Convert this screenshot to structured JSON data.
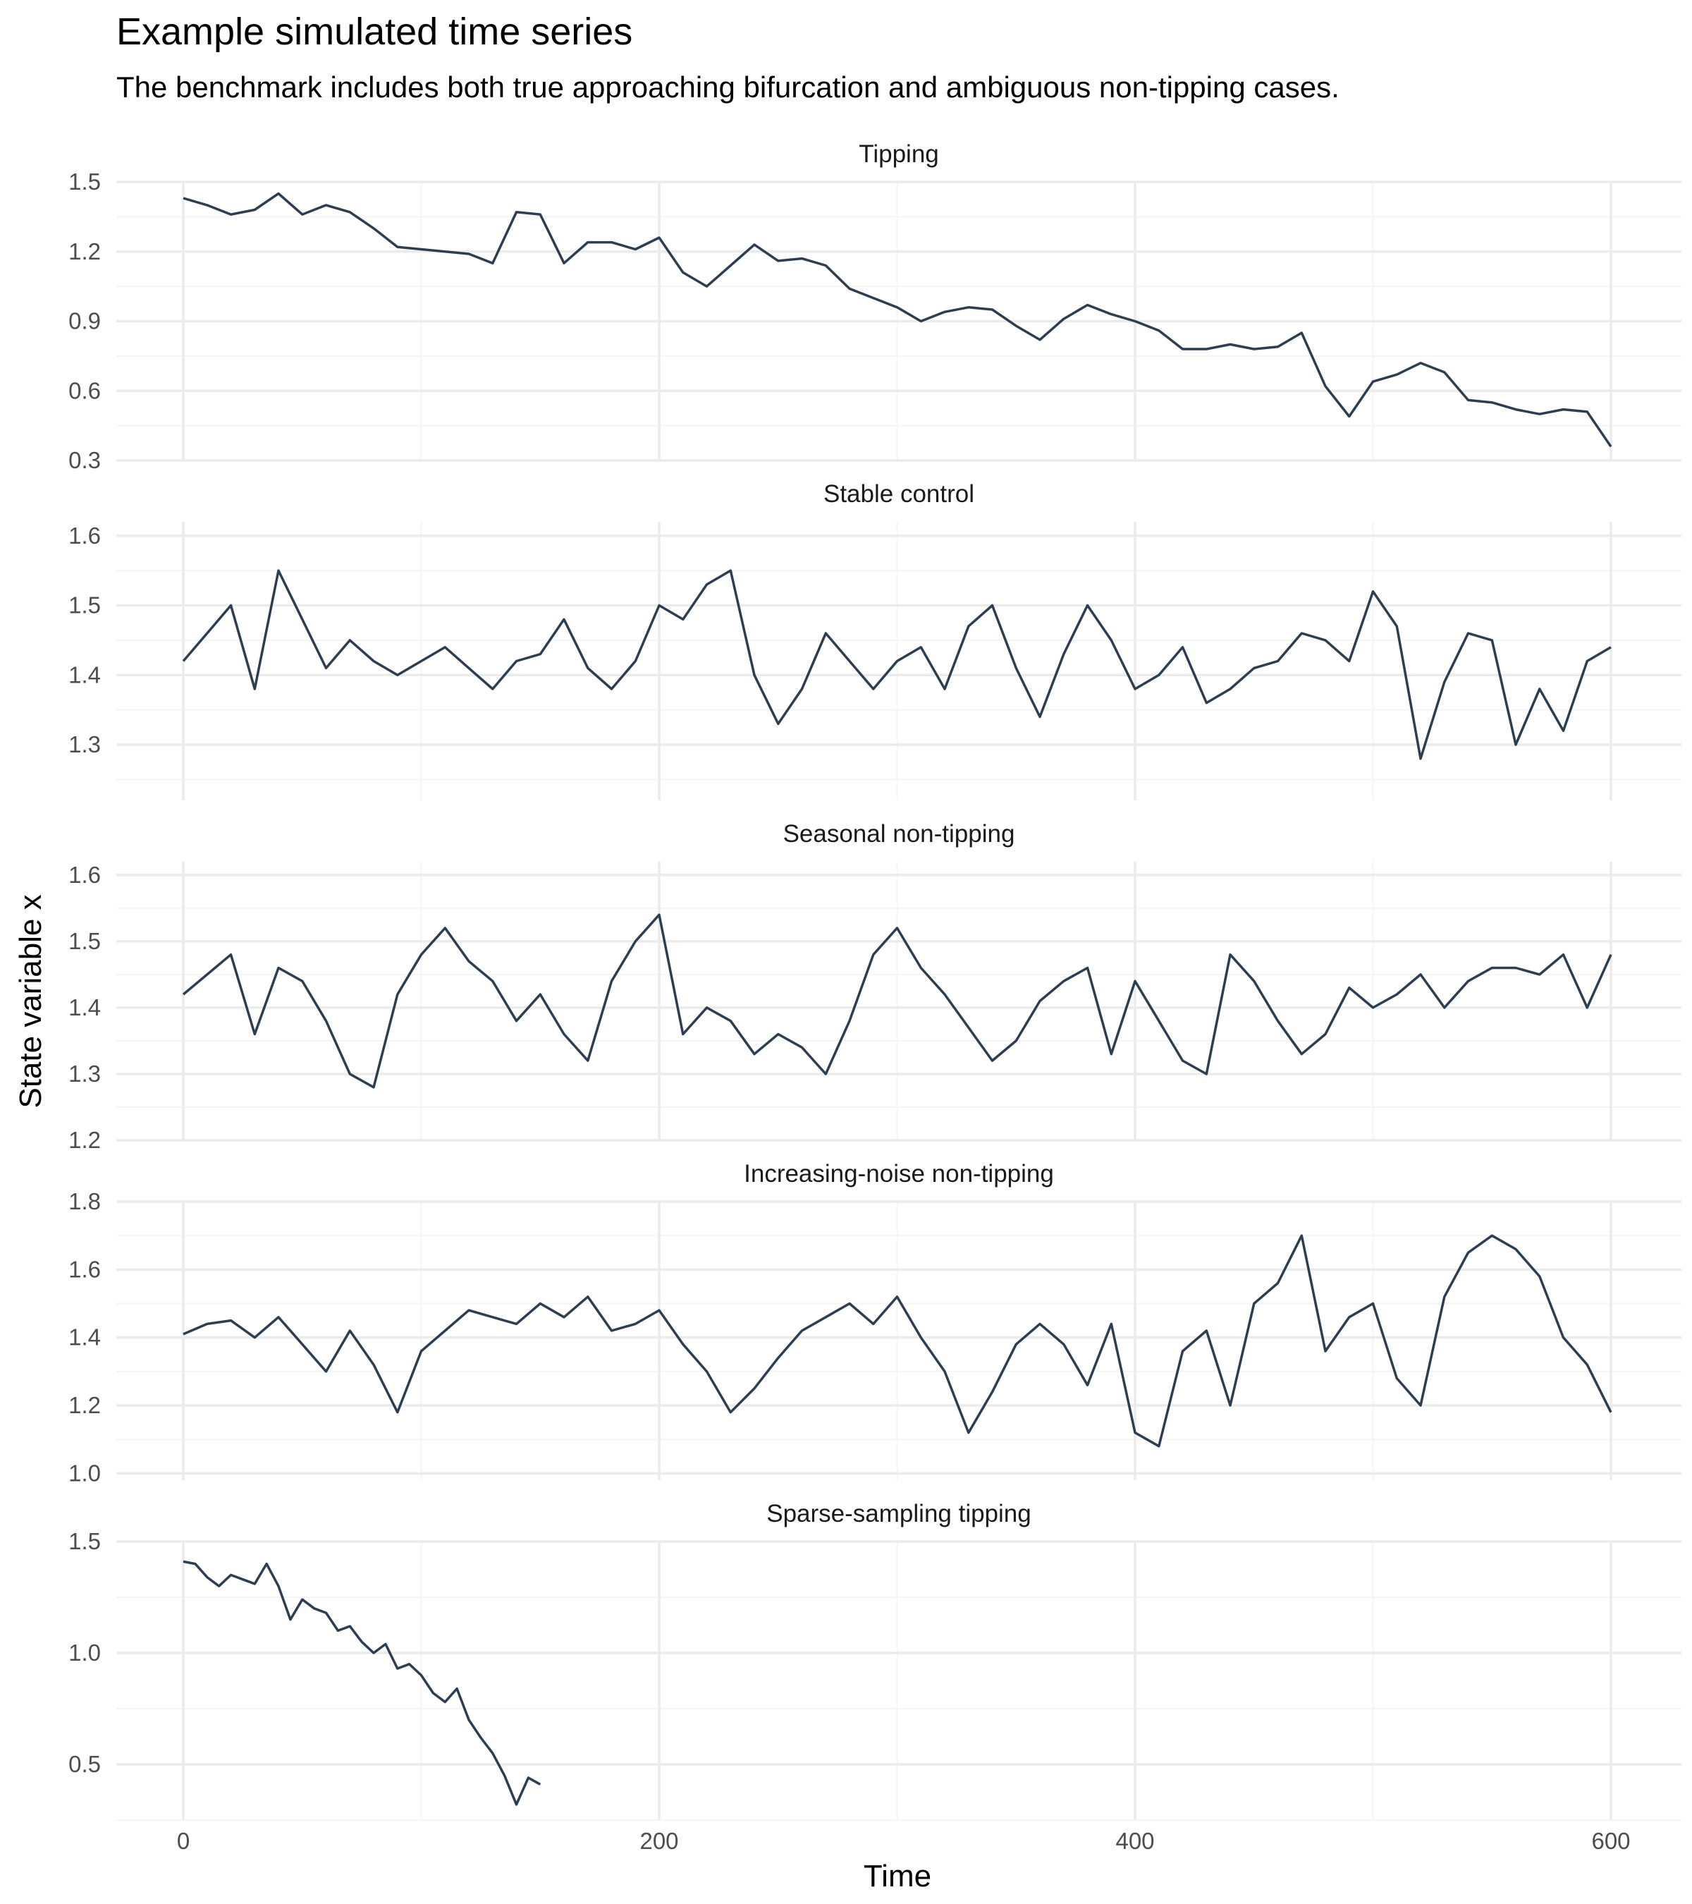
{
  "title": "Example simulated time series",
  "subtitle": "The benchmark includes both true approaching bifurcation and ambiguous non-tipping cases.",
  "colors": {
    "line": "#2c3e50",
    "grid_major": "#ebebeb",
    "grid_minor": "#f5f5f5",
    "tick_text": "#4d4d4d"
  },
  "chart_data": {
    "type": "line",
    "xlabel": "Time",
    "ylabel": "State variable x",
    "xlim": [
      0,
      600
    ],
    "x_ticks": [
      0,
      200,
      400,
      600
    ],
    "x_tick_labels": [
      "0",
      "200",
      "400",
      "600"
    ],
    "grid": true,
    "legend": "none",
    "facets": [
      {
        "name": "Tipping",
        "ylim": [
          0.3,
          1.5
        ],
        "y_ticks": [
          0.3,
          0.6,
          0.9,
          1.2,
          1.5
        ],
        "y_tick_labels": [
          "0.3",
          "0.6",
          "0.9",
          "1.2",
          "1.5"
        ],
        "x": [
          0,
          10,
          20,
          30,
          40,
          50,
          60,
          70,
          80,
          90,
          100,
          110,
          120,
          130,
          140,
          150,
          160,
          170,
          180,
          190,
          200,
          210,
          220,
          230,
          240,
          250,
          260,
          270,
          280,
          290,
          300,
          310,
          320,
          330,
          340,
          350,
          360,
          370,
          380,
          390,
          400,
          410,
          420,
          430,
          440,
          450,
          460,
          470,
          480,
          490,
          500,
          510,
          520,
          530,
          540,
          550,
          560,
          570,
          580,
          590,
          600
        ],
        "values": [
          1.43,
          1.4,
          1.36,
          1.38,
          1.45,
          1.36,
          1.4,
          1.37,
          1.3,
          1.22,
          1.21,
          1.2,
          1.19,
          1.15,
          1.37,
          1.36,
          1.15,
          1.24,
          1.24,
          1.21,
          1.26,
          1.11,
          1.05,
          1.14,
          1.23,
          1.16,
          1.17,
          1.14,
          1.04,
          1.0,
          0.96,
          0.9,
          0.94,
          0.96,
          0.95,
          0.88,
          0.82,
          0.91,
          0.97,
          0.93,
          0.9,
          0.86,
          0.78,
          0.78,
          0.8,
          0.78,
          0.79,
          0.85,
          0.62,
          0.49,
          0.64,
          0.67,
          0.72,
          0.68,
          0.56,
          0.55,
          0.52,
          0.5,
          0.52,
          0.51,
          0.36
        ]
      },
      {
        "name": "Stable control",
        "ylim": [
          1.22,
          1.62
        ],
        "y_ticks": [
          1.3,
          1.4,
          1.5,
          1.6
        ],
        "y_tick_labels": [
          "1.3",
          "1.4",
          "1.5",
          "1.6"
        ],
        "x": [
          0,
          10,
          20,
          30,
          40,
          50,
          60,
          70,
          80,
          90,
          100,
          110,
          120,
          130,
          140,
          150,
          160,
          170,
          180,
          190,
          200,
          210,
          220,
          230,
          240,
          250,
          260,
          270,
          280,
          290,
          300,
          310,
          320,
          330,
          340,
          350,
          360,
          370,
          380,
          390,
          400,
          410,
          420,
          430,
          440,
          450,
          460,
          470,
          480,
          490,
          500,
          510,
          520,
          530,
          540,
          550,
          560,
          570,
          580,
          590,
          600
        ],
        "values": [
          1.42,
          1.46,
          1.5,
          1.38,
          1.55,
          1.48,
          1.41,
          1.45,
          1.42,
          1.4,
          1.42,
          1.44,
          1.41,
          1.38,
          1.42,
          1.43,
          1.48,
          1.41,
          1.38,
          1.42,
          1.5,
          1.48,
          1.53,
          1.55,
          1.4,
          1.33,
          1.38,
          1.46,
          1.42,
          1.38,
          1.42,
          1.44,
          1.38,
          1.47,
          1.5,
          1.41,
          1.34,
          1.43,
          1.5,
          1.45,
          1.38,
          1.4,
          1.44,
          1.36,
          1.38,
          1.41,
          1.42,
          1.46,
          1.45,
          1.42,
          1.52,
          1.47,
          1.28,
          1.39,
          1.46,
          1.45,
          1.3,
          1.38,
          1.32,
          1.42,
          1.44
        ]
      },
      {
        "name": "Seasonal non-tipping",
        "ylim": [
          1.2,
          1.62
        ],
        "y_ticks": [
          1.2,
          1.3,
          1.4,
          1.5,
          1.6
        ],
        "y_tick_labels": [
          "1.2",
          "1.3",
          "1.4",
          "1.5",
          "1.6"
        ],
        "x": [
          0,
          10,
          20,
          30,
          40,
          50,
          60,
          70,
          80,
          90,
          100,
          110,
          120,
          130,
          140,
          150,
          160,
          170,
          180,
          190,
          200,
          210,
          220,
          230,
          240,
          250,
          260,
          270,
          280,
          290,
          300,
          310,
          320,
          330,
          340,
          350,
          360,
          370,
          380,
          390,
          400,
          410,
          420,
          430,
          440,
          450,
          460,
          470,
          480,
          490,
          500,
          510,
          520,
          530,
          540,
          550,
          560,
          570,
          580,
          590,
          600
        ],
        "values": [
          1.42,
          1.45,
          1.48,
          1.36,
          1.46,
          1.44,
          1.38,
          1.3,
          1.28,
          1.42,
          1.48,
          1.52,
          1.47,
          1.44,
          1.38,
          1.42,
          1.36,
          1.32,
          1.44,
          1.5,
          1.54,
          1.36,
          1.4,
          1.38,
          1.33,
          1.36,
          1.34,
          1.3,
          1.38,
          1.48,
          1.52,
          1.46,
          1.42,
          1.37,
          1.32,
          1.35,
          1.41,
          1.44,
          1.46,
          1.33,
          1.44,
          1.38,
          1.32,
          1.3,
          1.48,
          1.44,
          1.38,
          1.33,
          1.36,
          1.43,
          1.4,
          1.42,
          1.45,
          1.4,
          1.44,
          1.46,
          1.46,
          1.45,
          1.48,
          1.4,
          1.48
        ]
      },
      {
        "name": "Increasing-noise non-tipping",
        "ylim": [
          0.98,
          1.8
        ],
        "y_ticks": [
          1.0,
          1.2,
          1.4,
          1.6,
          1.8
        ],
        "y_tick_labels": [
          "1.0",
          "1.2",
          "1.4",
          "1.6",
          "1.8"
        ],
        "x": [
          0,
          10,
          20,
          30,
          40,
          50,
          60,
          70,
          80,
          90,
          100,
          110,
          120,
          130,
          140,
          150,
          160,
          170,
          180,
          190,
          200,
          210,
          220,
          230,
          240,
          250,
          260,
          270,
          280,
          290,
          300,
          310,
          320,
          330,
          340,
          350,
          360,
          370,
          380,
          390,
          400,
          410,
          420,
          430,
          440,
          450,
          460,
          470,
          480,
          490,
          500,
          510,
          520,
          530,
          540,
          550,
          560,
          570,
          580,
          590,
          600
        ],
        "values": [
          1.41,
          1.44,
          1.45,
          1.4,
          1.46,
          1.38,
          1.3,
          1.42,
          1.32,
          1.18,
          1.36,
          1.42,
          1.48,
          1.46,
          1.44,
          1.5,
          1.46,
          1.52,
          1.42,
          1.44,
          1.48,
          1.38,
          1.3,
          1.18,
          1.25,
          1.34,
          1.42,
          1.46,
          1.5,
          1.44,
          1.52,
          1.4,
          1.3,
          1.12,
          1.24,
          1.38,
          1.44,
          1.38,
          1.26,
          1.44,
          1.12,
          1.08,
          1.36,
          1.42,
          1.2,
          1.5,
          1.56,
          1.7,
          1.36,
          1.46,
          1.5,
          1.28,
          1.2,
          1.52,
          1.65,
          1.7,
          1.66,
          1.58,
          1.4,
          1.32,
          1.18
        ]
      },
      {
        "name": "Sparse-sampling tipping",
        "ylim": [
          0.25,
          1.5
        ],
        "y_ticks": [
          0.5,
          1.0,
          1.5
        ],
        "y_tick_labels": [
          "0.5",
          "1.0",
          "1.5"
        ],
        "x": [
          0,
          5,
          10,
          15,
          20,
          25,
          30,
          35,
          40,
          45,
          50,
          55,
          60,
          65,
          70,
          75,
          80,
          85,
          90,
          95,
          100,
          105,
          110,
          115,
          120,
          125,
          130,
          135,
          140,
          145,
          150
        ],
        "values": [
          1.41,
          1.4,
          1.34,
          1.3,
          1.35,
          1.33,
          1.31,
          1.4,
          1.3,
          1.15,
          1.24,
          1.2,
          1.18,
          1.1,
          1.12,
          1.05,
          1.0,
          1.04,
          0.93,
          0.95,
          0.9,
          0.82,
          0.78,
          0.84,
          0.7,
          0.62,
          0.55,
          0.45,
          0.32,
          0.44,
          0.41
        ]
      }
    ]
  }
}
